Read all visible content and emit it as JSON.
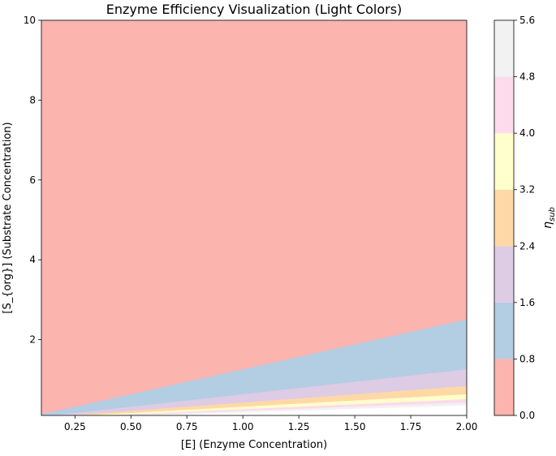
{
  "chart_data": {
    "type": "heatmap",
    "subtype": "filled-contour",
    "title": "Enzyme Efficiency Visualization (Light Colors)",
    "xlabel": "[E] (Enzyme Concentration)",
    "ylabel": "[S_{org}] (Substrate Concentration)",
    "xlim": [
      0.1,
      2.0
    ],
    "ylim": [
      0.1,
      10
    ],
    "xticks": [
      0.25,
      0.5,
      0.75,
      1.0,
      1.25,
      1.5,
      1.75,
      2.0
    ],
    "xtick_labels": [
      "0.25",
      "0.50",
      "0.75",
      "1.00",
      "1.25",
      "1.50",
      "1.75",
      "2.00"
    ],
    "yticks": [
      2,
      4,
      6,
      8,
      10
    ],
    "ytick_labels": [
      "2",
      "4",
      "6",
      "8",
      "10"
    ],
    "model": "eta_sub = [E] / [S_org]",
    "grid": false,
    "colorbar": {
      "label_tex": "η",
      "label_sub": "sub",
      "levels": [
        0.0,
        0.8,
        1.6,
        2.4,
        3.2,
        4.0,
        4.8,
        5.6
      ],
      "level_labels": [
        "0.0",
        "0.8",
        "1.6",
        "2.4",
        "3.2",
        "4.0",
        "4.8",
        "5.6"
      ],
      "colors": [
        "#fbb4ae",
        "#b3cde3",
        "#decbe4",
        "#fed9a6",
        "#ffffcc",
        "#fddaec",
        "#f2f2f2"
      ]
    }
  }
}
